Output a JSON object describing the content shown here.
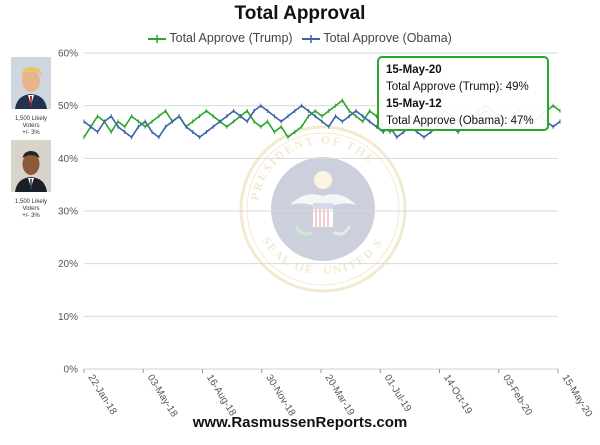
{
  "title": "Total Approval",
  "footer": "www.RasmussenReports.com",
  "colors": {
    "trump": "#2aa62a",
    "obama": "#3a63a8",
    "grid": "#d9d9d9",
    "tooltip_border": "#2aa62a"
  },
  "legend": [
    {
      "label": "Total Approve (Trump)",
      "color": "#2aa62a"
    },
    {
      "label": "Total Approve (Obama)",
      "color": "#3a63a8"
    }
  ],
  "side_panels": [
    {
      "portrait_icon": "portrait-trump",
      "line1": "1,500 Likely",
      "line2": "Voters",
      "line3": "+/- 3%"
    },
    {
      "portrait_icon": "portrait-obama",
      "line1": "1,500 Likely",
      "line2": "Voters",
      "line3": "+/- 3%"
    }
  ],
  "tooltip": {
    "date_trump": "15-May-20",
    "line_trump": "Total Approve (Trump): 49%",
    "date_obama": "15-May-12",
    "line_obama": "Total Approve (Obama): 47%"
  },
  "watermark": {
    "text_left": "SEAL OF THE",
    "text_right": "UNITED STATES",
    "text_top": "PRESIDENT OF THE"
  },
  "chart_data": {
    "type": "line",
    "title": "Total Approval",
    "xlabel": "",
    "ylabel": "",
    "ylim": [
      0,
      60
    ],
    "yticks": [
      "0%",
      "10%",
      "20%",
      "30%",
      "40%",
      "50%",
      "60%"
    ],
    "x_tick_labels": [
      "22-Jan-18",
      "03-May-18",
      "16-Aug-18",
      "30-Nov-18",
      "20-Mar-19",
      "01-Jul-19",
      "14-Oct-19",
      "03-Feb-20",
      "15-May-20"
    ],
    "grid": true,
    "legend_position": "top",
    "series": [
      {
        "name": "Total Approve (Trump)",
        "color": "#2aa62a",
        "values": [
          44,
          46,
          48,
          47,
          45,
          47,
          46,
          48,
          47,
          46,
          47,
          48,
          49,
          47,
          48,
          46,
          47,
          48,
          49,
          48,
          47,
          46,
          47,
          48,
          49,
          47,
          46,
          47,
          45,
          46,
          44,
          45,
          46,
          48,
          49,
          48,
          49,
          50,
          51,
          49,
          48,
          47,
          49,
          48,
          46,
          45,
          46,
          47,
          48,
          47,
          46,
          47,
          48,
          49,
          48,
          47,
          46,
          48,
          49,
          50,
          49,
          48,
          47,
          48,
          49,
          48,
          47,
          48,
          49,
          50,
          49
        ]
      },
      {
        "name": "Total Approve (Obama)",
        "color": "#3a63a8",
        "values": [
          47,
          46,
          45,
          47,
          48,
          46,
          45,
          44,
          46,
          47,
          45,
          44,
          46,
          47,
          48,
          46,
          45,
          44,
          45,
          46,
          47,
          48,
          49,
          48,
          47,
          49,
          50,
          49,
          48,
          47,
          48,
          49,
          50,
          49,
          48,
          47,
          46,
          48,
          47,
          48,
          49,
          48,
          47,
          46,
          45,
          46,
          44,
          45,
          46,
          45,
          44,
          45,
          46,
          47,
          46,
          45,
          46,
          47,
          48,
          49,
          48,
          47,
          48,
          47,
          46,
          48,
          47,
          48,
          47,
          46,
          47
        ]
      }
    ]
  }
}
